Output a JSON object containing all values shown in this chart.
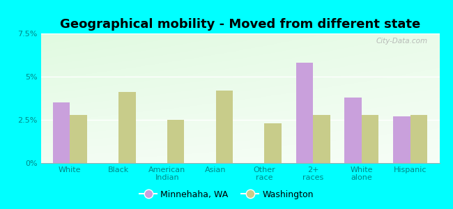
{
  "title": "Geographical mobility - Moved from different state",
  "categories": [
    "White",
    "Black",
    "American\nIndian",
    "Asian",
    "Other\nrace",
    "2+\nraces",
    "White\nalone",
    "Hispanic"
  ],
  "minnehaha_values": [
    3.5,
    0.0,
    0.0,
    0.0,
    0.0,
    5.8,
    3.8,
    2.7
  ],
  "washington_values": [
    2.8,
    4.1,
    2.5,
    4.2,
    2.3,
    2.8,
    2.8,
    2.8
  ],
  "minnehaha_color": "#c9a0dc",
  "washington_color": "#c8cc8a",
  "outer_bg": "#00ffff",
  "ylim": [
    0,
    7.5
  ],
  "yticks": [
    0,
    2.5,
    5.0,
    7.5
  ],
  "ytick_labels": [
    "0%",
    "2.5%",
    "5%",
    "7.5%"
  ],
  "legend_minnehaha": "Minnehaha, WA",
  "legend_washington": "Washington",
  "bar_width": 0.35,
  "title_fontsize": 13,
  "watermark": "City-Data.com",
  "tick_color": "#008888",
  "label_color": "#007777"
}
